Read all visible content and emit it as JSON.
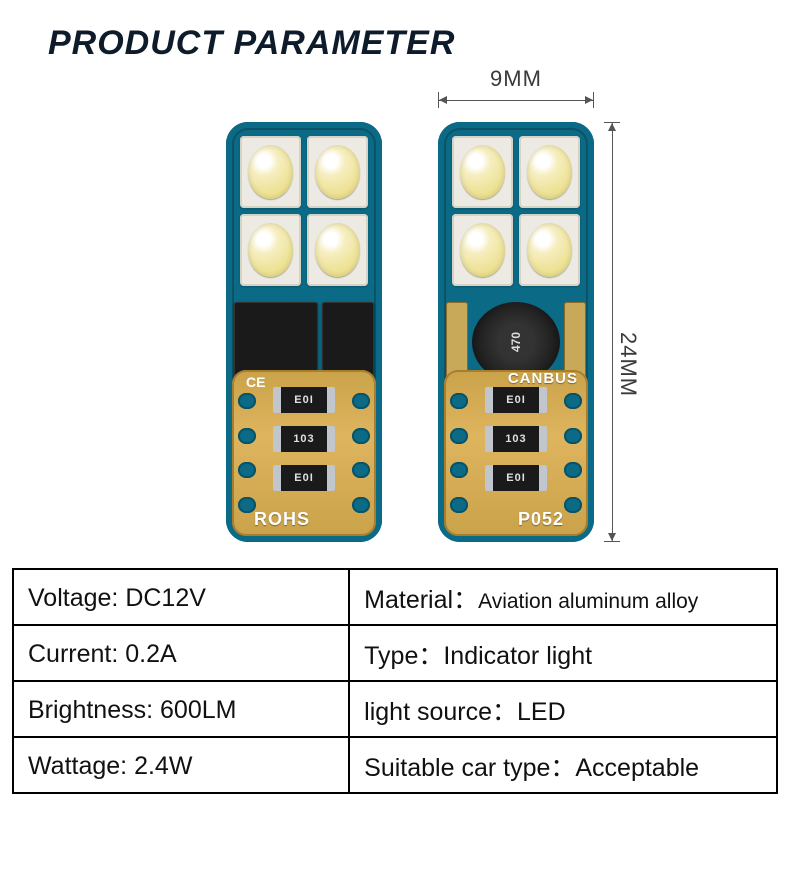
{
  "title": "PRODUCT PARAMETER",
  "dimensions": {
    "width_label": "9MM",
    "height_label": "24MM"
  },
  "modules": {
    "left": {
      "silk_top": "",
      "silk_bottom": "ROHS",
      "smd_marks": [
        "E0I",
        "103",
        "E0I"
      ],
      "ce_mark": "CE"
    },
    "right": {
      "silk_top": "CANBUS",
      "silk_bottom": "P052",
      "smd_marks": [
        "E0I",
        "103",
        "E0I"
      ]
    }
  },
  "specs": [
    {
      "label": "Voltage:",
      "value": "DC12V",
      "label2": "Material：",
      "value2": "Aviation aluminum alloy",
      "small2": true
    },
    {
      "label": "Current:",
      "value": "0.2A",
      "label2": "Type：",
      "value2": "Indicator light"
    },
    {
      "label": "Brightness:",
      "value": "600LM",
      "label2": "light source：",
      "value2": "LED"
    },
    {
      "label": "Wattage:",
      "value": "2.4W",
      "label2": "Suitable car type：",
      "value2": "Acceptable"
    }
  ],
  "colors": {
    "pcb": "#0b6a86",
    "gold": "#caa24a",
    "title": "#0d1b2a"
  }
}
